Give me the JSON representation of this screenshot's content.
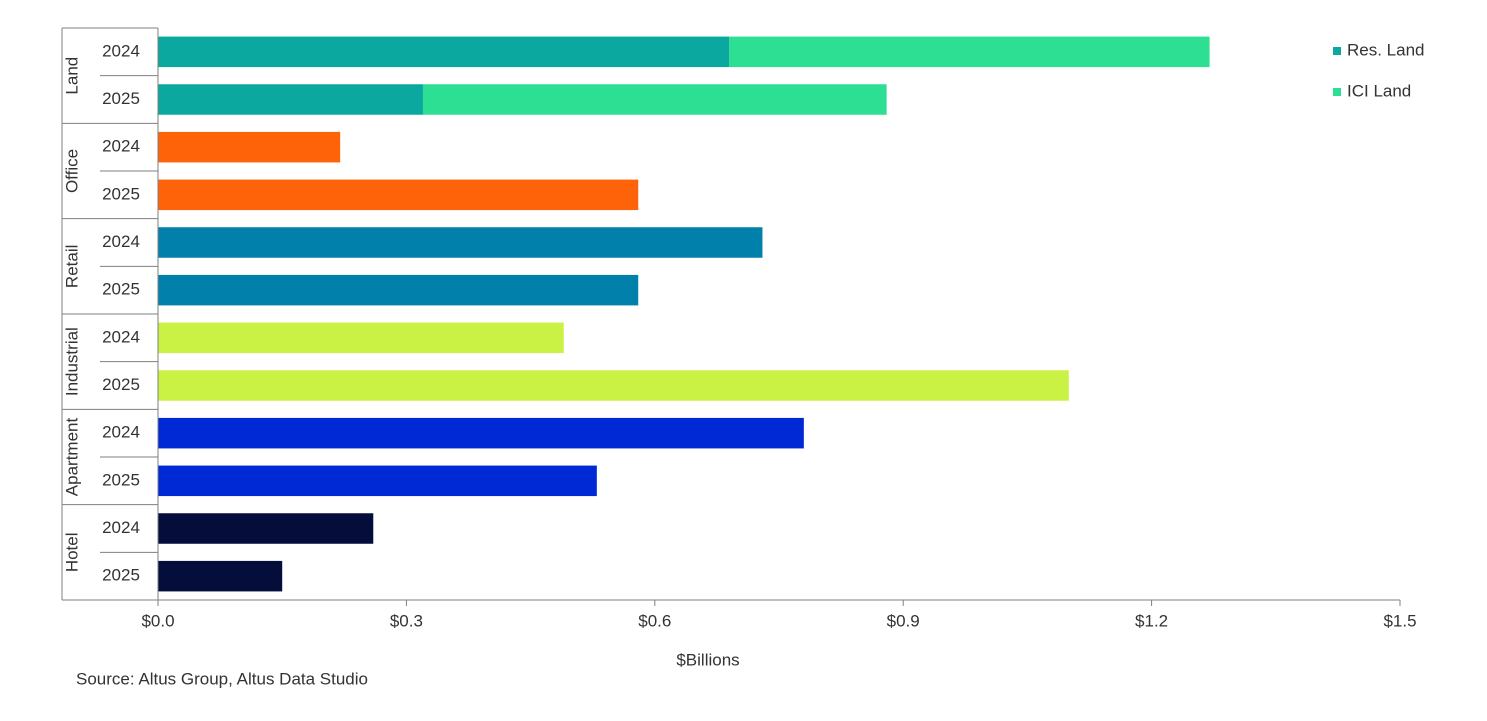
{
  "chart_data": {
    "type": "bar",
    "orientation": "horizontal",
    "groups": [
      {
        "name": "Land",
        "categories": [
          "2024",
          "2025"
        ],
        "series": [
          {
            "name": "Res. Land",
            "color": "#0aa89e",
            "values": [
              0.69,
              0.32
            ]
          },
          {
            "name": "ICI Land",
            "color": "#2ddf92",
            "values": [
              0.58,
              0.56
            ]
          }
        ]
      },
      {
        "name": "Office",
        "color": "#ff6309",
        "categories": [
          "2024",
          "2025"
        ],
        "values": [
          0.22,
          0.58
        ]
      },
      {
        "name": "Retail",
        "color": "#0080aa",
        "categories": [
          "2024",
          "2025"
        ],
        "values": [
          0.73,
          0.58
        ]
      },
      {
        "name": "Industrial",
        "color": "#c9f244",
        "categories": [
          "2024",
          "2025"
        ],
        "values": [
          0.49,
          1.1
        ]
      },
      {
        "name": "Apartment",
        "color": "#0029d6",
        "categories": [
          "2024",
          "2025"
        ],
        "values": [
          0.78,
          0.53
        ]
      },
      {
        "name": "Hotel",
        "color": "#050d3b",
        "categories": [
          "2024",
          "2025"
        ],
        "values": [
          0.26,
          0.15
        ]
      }
    ],
    "xlim": [
      0,
      1.5
    ],
    "xticks": [
      {
        "value": 0,
        "label": "$0.0"
      },
      {
        "value": 0.3,
        "label": "$0.3"
      },
      {
        "value": 0.6,
        "label": "$0.6"
      },
      {
        "value": 0.9,
        "label": "$0.9"
      },
      {
        "value": 1.2,
        "label": "$1.2"
      },
      {
        "value": 1.5,
        "label": "$1.5"
      }
    ],
    "xlabel": "$Billions",
    "legend": "top-right",
    "source": "Source:  Altus Group, Altus Data Studio"
  }
}
